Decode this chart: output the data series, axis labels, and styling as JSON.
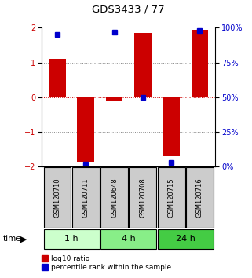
{
  "title": "GDS3433 / 77",
  "samples": [
    "GSM120710",
    "GSM120711",
    "GSM120648",
    "GSM120708",
    "GSM120715",
    "GSM120716"
  ],
  "log10_ratio": [
    1.1,
    -1.85,
    -0.12,
    1.85,
    -1.7,
    1.95
  ],
  "percentile_rank": [
    95,
    2,
    97,
    50,
    3,
    98
  ],
  "ylim": [
    -2,
    2
  ],
  "yticks_left": [
    -2,
    -1,
    0,
    1,
    2
  ],
  "yticks_right": [
    0,
    25,
    50,
    75,
    100
  ],
  "bar_color_red": "#cc0000",
  "bar_color_blue": "#0000cc",
  "grid_color": "#888888",
  "zero_line_color": "#cc0000",
  "bg_color": "#ffffff",
  "sample_box_color": "#cccccc",
  "group_configs": [
    {
      "label": "1 h",
      "start": 0,
      "end": 1,
      "color": "#ccffcc"
    },
    {
      "label": "4 h",
      "start": 2,
      "end": 3,
      "color": "#88ee88"
    },
    {
      "label": "24 h",
      "start": 4,
      "end": 5,
      "color": "#44cc44"
    }
  ],
  "figsize": [
    3.21,
    3.54
  ],
  "dpi": 100
}
